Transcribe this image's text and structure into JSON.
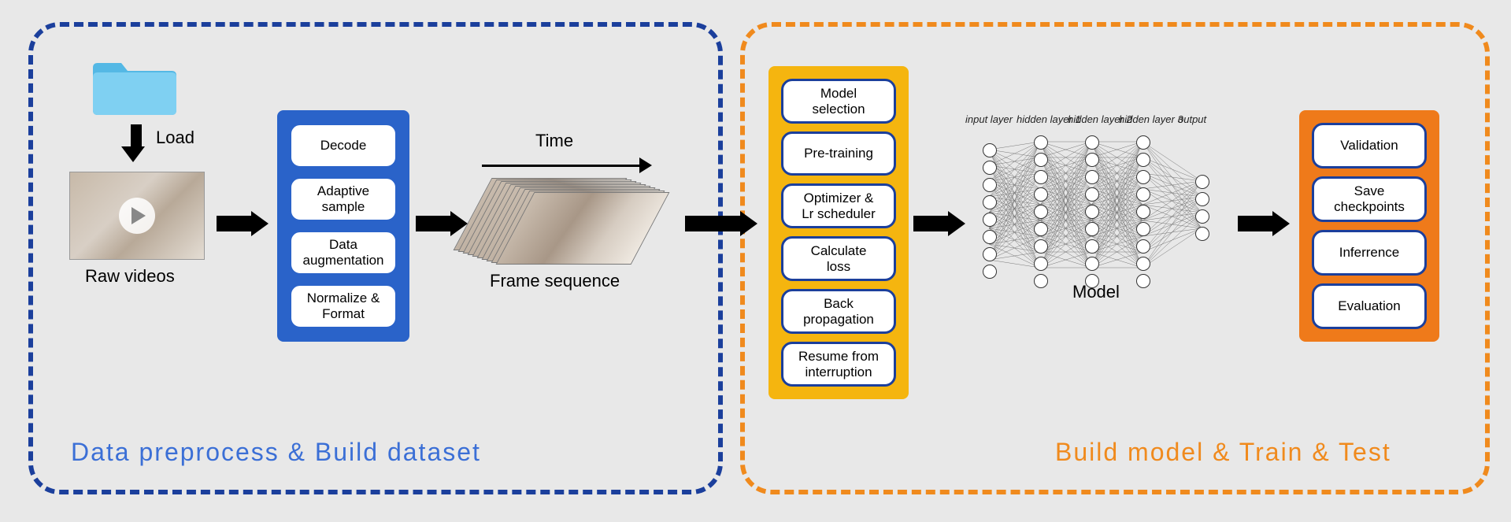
{
  "colors": {
    "left_stage_border": "#1b3f9c",
    "left_stage_title": "#3b6fd6",
    "right_stage_border": "#f08a1d",
    "right_stage_title": "#f08a1d",
    "blue_box_bg": "#2a63c9",
    "blue_pill_border": "#2a63c9",
    "yellow_box_bg": "#f5b50f",
    "yellow_pill_border": "#1b3f9c",
    "orange_box_bg": "#ef7a1a",
    "orange_pill_border": "#1b3f9c",
    "folder_light": "#7fd0f2",
    "folder_dark": "#54b8e5",
    "bg": "#e8e8e8"
  },
  "left_stage": {
    "title": "Data preprocess & Build dataset"
  },
  "right_stage": {
    "title": "Build model & Train & Test"
  },
  "labels": {
    "load": "Load",
    "raw_videos": "Raw videos",
    "time": "Time",
    "frame_sequence": "Frame sequence",
    "model": "Model"
  },
  "blue_pills": [
    "Decode",
    "Adaptive\nsample",
    "Data\naugmentation",
    "Normalize &\nFormat"
  ],
  "yellow_pills": [
    "Model\nselection",
    "Pre-training",
    "Optimizer &\nLr scheduler",
    "Calculate\nloss",
    "Back\npropagation",
    "Resume from\ninterruption"
  ],
  "orange_pills": [
    "Validation",
    "Save\ncheckpoints",
    "Inferrence",
    "Evaluation"
  ],
  "nn_layers": {
    "labels": [
      "input layer",
      "hidden layer 1",
      "hidden layer 2",
      "hidden layer 3",
      "output"
    ],
    "counts": [
      8,
      9,
      9,
      9,
      4
    ]
  }
}
